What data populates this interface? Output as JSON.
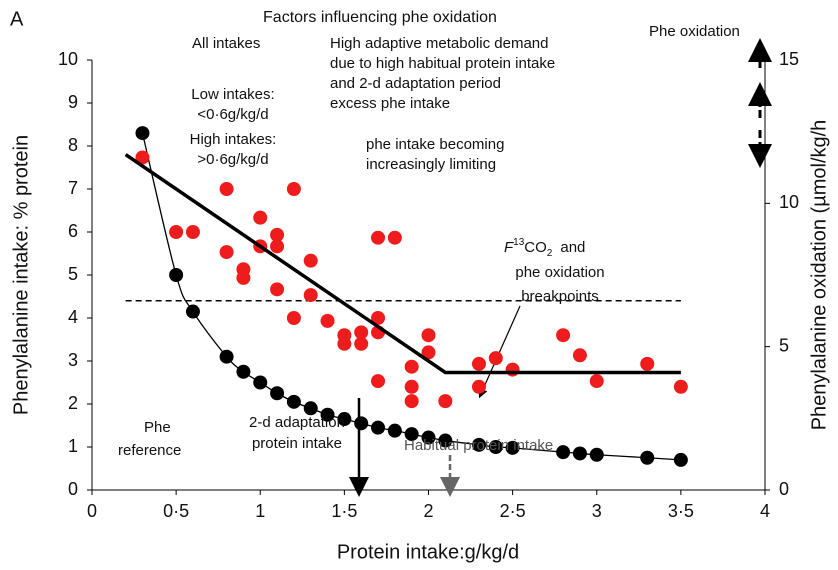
{
  "chart_data": {
    "type": "scatter",
    "panel_label": "A",
    "title": "Factors influencing phe oxidation",
    "x_label": "Protein intake:g/kg/d",
    "y_label": "Phenylalanine intake: % protein",
    "y2_label": "Phenylalanine oxidation (µmol/kg/h",
    "xlim": [
      0,
      4
    ],
    "xticks": [
      0,
      {
        "value": 0.5,
        "label": "0·5"
      },
      1,
      {
        "value": 1.5,
        "label": "1·5"
      },
      2,
      {
        "value": 2.5,
        "label": "2·5"
      },
      3,
      {
        "value": 3.5,
        "label": "3·5"
      },
      4
    ],
    "ylim": [
      0,
      10
    ],
    "yticks": [
      0,
      1,
      2,
      3,
      4,
      5,
      6,
      7,
      8,
      9,
      10
    ],
    "y2lim": [
      0,
      15
    ],
    "y2ticks": [
      0,
      5,
      10,
      15
    ],
    "series": [
      {
        "color": "#000000",
        "marker": true,
        "line": "curve",
        "x": [
          0.3,
          0.5,
          0.6,
          0.8,
          0.9,
          1.0,
          1.1,
          1.2,
          1.3,
          1.4,
          1.5,
          1.6,
          1.7,
          1.8,
          1.9,
          2.0,
          2.1,
          2.3,
          2.4,
          2.5,
          2.8,
          2.9,
          3.0,
          3.3,
          3.5
        ],
        "values": [
          8.3,
          5.0,
          4.15,
          3.1,
          2.75,
          2.5,
          2.25,
          2.05,
          1.9,
          1.75,
          1.65,
          1.55,
          1.45,
          1.38,
          1.3,
          1.22,
          1.15,
          1.05,
          1.0,
          0.98,
          0.88,
          0.85,
          0.82,
          0.75,
          0.7
        ]
      },
      {
        "color": "#ee1c1c",
        "marker": true,
        "axis": "y2",
        "x": [
          0.3,
          0.5,
          0.6,
          0.8,
          0.8,
          0.9,
          0.9,
          1.0,
          1.0,
          1.1,
          1.1,
          1.1,
          1.2,
          1.2,
          1.3,
          1.3,
          1.4,
          1.5,
          1.5,
          1.6,
          1.6,
          1.7,
          1.7,
          1.7,
          1.7,
          1.8,
          1.9,
          1.9,
          1.9,
          2.0,
          2.0,
          2.1,
          2.3,
          2.3,
          2.4,
          2.5,
          2.8,
          2.9,
          3.0,
          3.3,
          3.5
        ],
        "values": [
          11.6,
          9.0,
          9.0,
          10.5,
          8.3,
          7.7,
          7.4,
          9.5,
          8.5,
          8.9,
          8.5,
          7.0,
          10.5,
          6.0,
          8.0,
          6.8,
          5.9,
          5.4,
          5.1,
          5.5,
          5.1,
          8.8,
          6.0,
          5.5,
          3.8,
          8.8,
          4.3,
          3.6,
          3.1,
          5.4,
          4.8,
          3.1,
          4.4,
          3.6,
          4.6,
          4.2,
          5.4,
          4.7,
          3.8,
          4.4,
          3.6
        ]
      },
      {
        "color": "#000000",
        "marker": false,
        "line": "thick",
        "axis": "y2",
        "x": [
          0.2,
          2.1,
          3.5
        ],
        "values": [
          11.7,
          4.1,
          4.1
        ]
      }
    ],
    "reference_line": {
      "y": 4.4,
      "x": [
        0.2,
        3.5
      ],
      "style": "dashed"
    },
    "annotations": [
      "All intakes",
      "High adaptive metabolic demand",
      "due to high habitual protein intake",
      "and 2-d adaptation period",
      "excess phe intake",
      "Low intakes:",
      "<0·6g/kg/d",
      "High intakes:",
      ">0·6g/kg/d",
      "phe intake becoming",
      "increasingly limiting",
      "phe oxidation",
      "breakpoints",
      "Phe",
      "reference",
      "2-d adaptation",
      "protein intake",
      "Habitual protein intake",
      "Phe oxidation"
    ],
    "breakpoint_formula": [
      "F",
      "13",
      "CO",
      "2",
      "and"
    ]
  }
}
